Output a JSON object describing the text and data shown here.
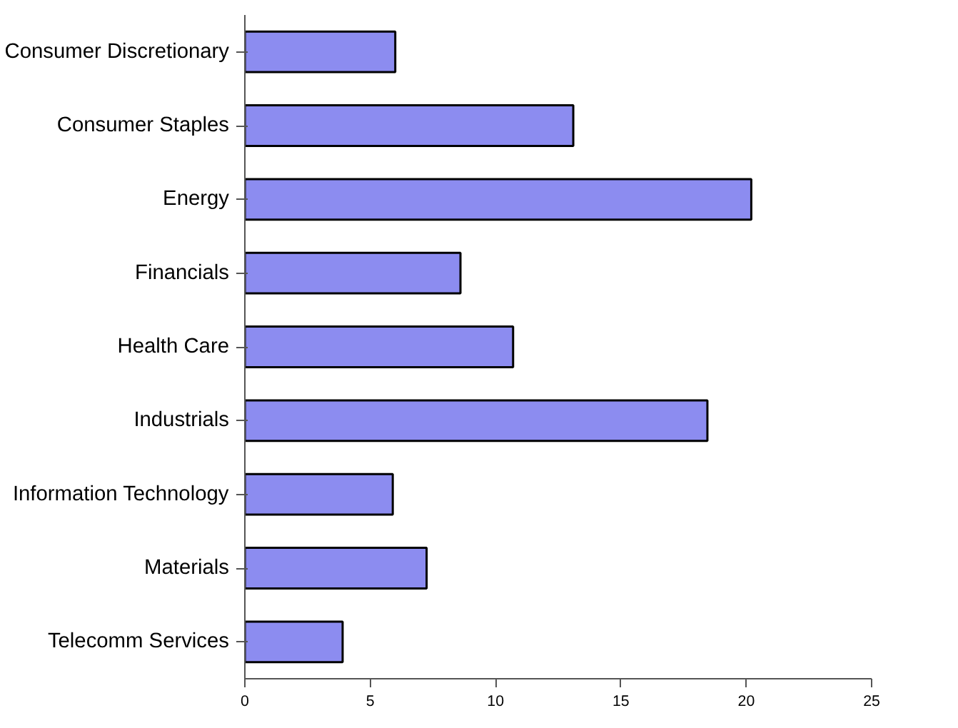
{
  "chart_data": {
    "type": "bar",
    "orientation": "horizontal",
    "categories": [
      "Consumer Discretionary",
      "Consumer Staples",
      "Energy",
      "Financials",
      "Health Care",
      "Industrials",
      "Information Technology",
      "Materials",
      "Telecomm Services"
    ],
    "values": [
      6.0,
      13.1,
      20.2,
      8.6,
      10.7,
      18.45,
      5.9,
      7.25,
      3.9
    ],
    "color": "#8c8cf0",
    "xlim": [
      0,
      25
    ],
    "xticks": [
      0,
      5,
      10,
      15,
      20,
      25
    ],
    "grid": false
  }
}
